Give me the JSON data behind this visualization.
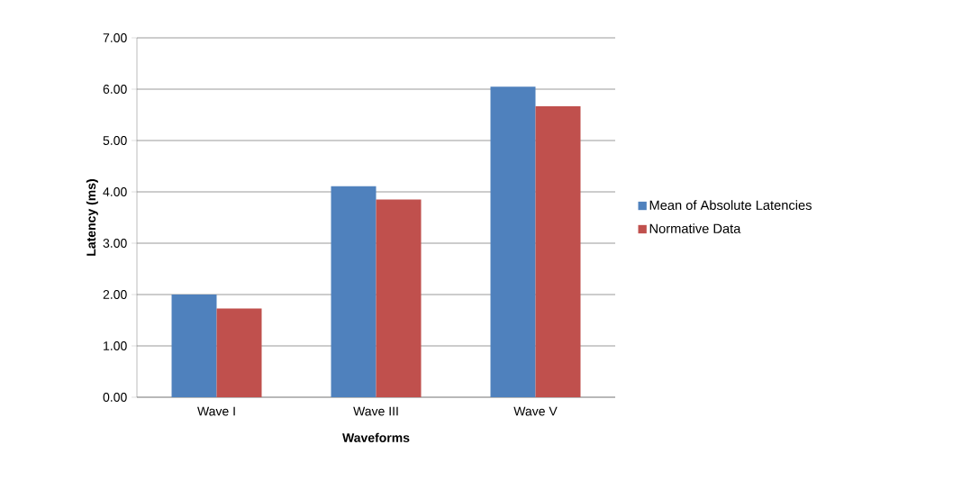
{
  "chart_data": {
    "type": "bar",
    "xlabel": "Waveforms",
    "ylabel": "Latency (ms)",
    "categories": [
      "Wave I",
      "Wave III",
      "Wave V"
    ],
    "series": [
      {
        "name": "Mean of Absolute Latencies",
        "color": "#4f81bd",
        "values": [
          2.0,
          4.11,
          6.05
        ]
      },
      {
        "name": "Normative Data",
        "color": "#c0504d",
        "values": [
          1.73,
          3.85,
          5.67
        ]
      }
    ],
    "ylim": [
      0,
      7
    ],
    "yticks": [
      {
        "value": 0,
        "label": "0.00"
      },
      {
        "value": 1,
        "label": "1.00"
      },
      {
        "value": 2,
        "label": "2.00"
      },
      {
        "value": 3,
        "label": "3.00"
      },
      {
        "value": 4,
        "label": "4.00"
      },
      {
        "value": 5,
        "label": "5.00"
      },
      {
        "value": 6,
        "label": "6.00"
      },
      {
        "value": 7,
        "label": "7.00"
      }
    ],
    "grid": "y",
    "legend": "right"
  }
}
